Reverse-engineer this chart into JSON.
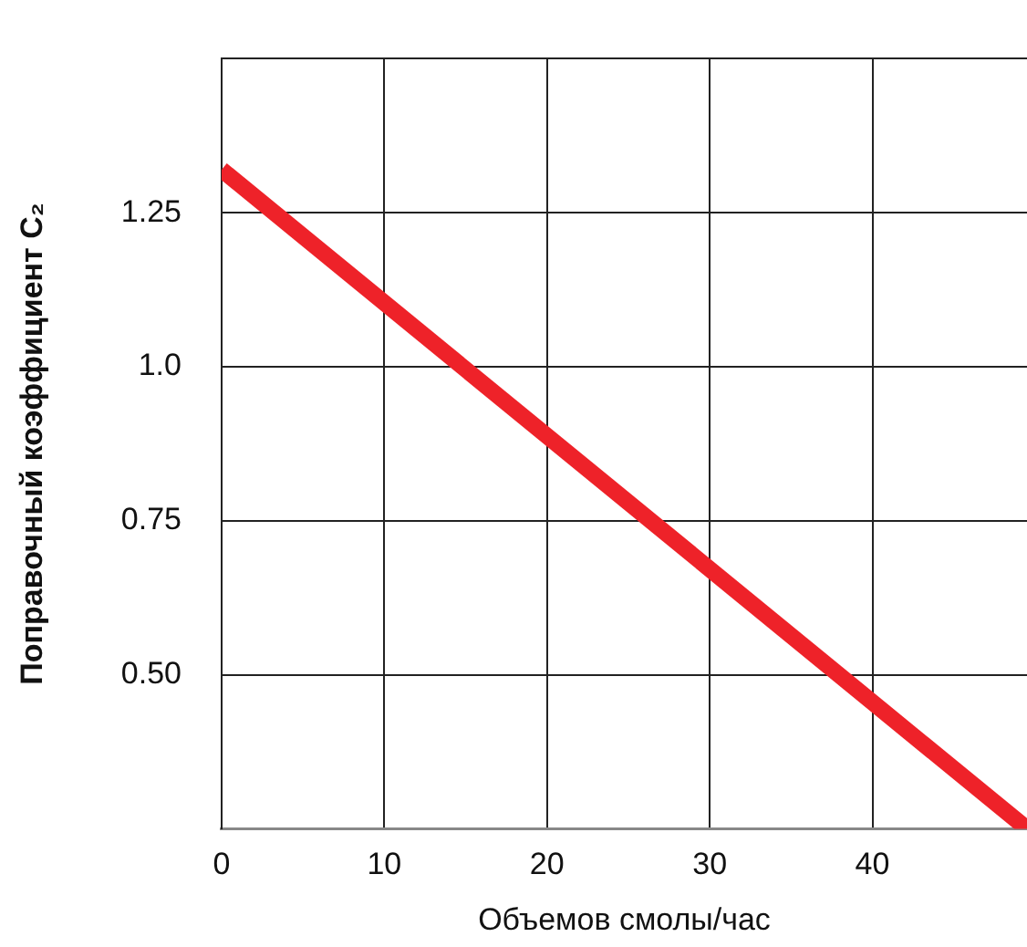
{
  "chart_data": {
    "type": "line",
    "xlabel": "Объемов смолы/час",
    "ylabel": "Поправочный коэффициент C₂",
    "x": [
      0,
      49.5
    ],
    "series": [
      {
        "color": "#ee2229",
        "values": [
          1.32,
          0.25
        ]
      }
    ],
    "xlim": [
      0,
      49.5
    ],
    "xticks": [
      0,
      10,
      20,
      30,
      40
    ],
    "ylim": [
      0.25,
      1.5
    ],
    "yticks": [
      {
        "value": 0.5,
        "label": "0.50"
      },
      0.75,
      {
        "value": 1.0,
        "label": "1.0"
      },
      1.25,
      {
        "value": 1.5,
        "label": null
      }
    ],
    "grid": true,
    "legend": false,
    "marker": "none",
    "line_style": "solid"
  }
}
